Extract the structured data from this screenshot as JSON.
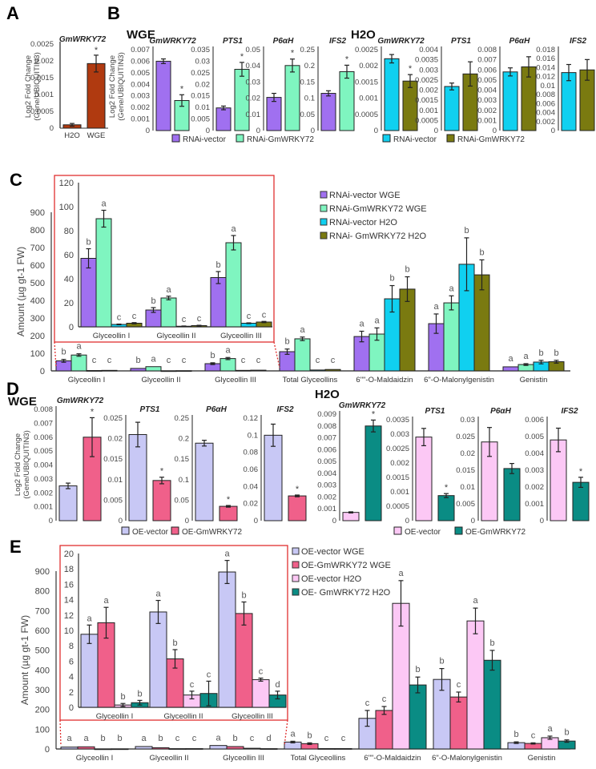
{
  "colors": {
    "rnai_vector_wge": "#a070f0",
    "rnai_gm_wge": "#7ff5c0",
    "rnai_vector_h2o": "#10d0f0",
    "rnai_gm_h2o": "#7a7a10",
    "oe_vector_wge": "#c8c8f5",
    "oe_gm_wge": "#f0608a",
    "oe_vector_h2o": "#fcc8f5",
    "oe_gm_h2o": "#0a8c84",
    "panelA": "#b03a10",
    "inset_border": "#e03030"
  },
  "chart_data": [
    {
      "id": "A",
      "panel": "A",
      "type": "bar",
      "title": "GmWRKY72",
      "ylabel": "Log2 Fold Change (Gene/UBIQUITIN3)",
      "categories": [
        "H2O",
        "WGE"
      ],
      "values": [
        0.0001,
        0.00192
      ],
      "errors": [
        4e-05,
        0.00025
      ],
      "significance": [
        "",
        "*"
      ],
      "yticks": [
        "0",
        "0.0005",
        "0.001",
        "0.0015",
        "0.002",
        "0.0025"
      ],
      "ylim": [
        0,
        0.0025
      ]
    },
    {
      "id": "B",
      "panel": "B",
      "type": "bar",
      "ylabel": "Log2 Fold Change (Gene/UBIQUITIN3)",
      "groups": [
        {
          "condition": "WGE",
          "legend": [
            "RNAi-vector",
            "RNAi-GmWRKY72"
          ],
          "genes": [
            {
              "name": "GmWRKY72",
              "values": [
                0.006,
                0.0026
              ],
              "errors": [
                0.0002,
                0.0005
              ],
              "sig": [
                "",
                "*"
              ],
              "yticks": [
                "0",
                "0.001",
                "0.002",
                "0.003",
                "0.004",
                "0.005",
                "0.006",
                "0.007"
              ],
              "ylim": [
                0,
                0.007
              ]
            },
            {
              "name": "PTS1",
              "values": [
                0.0098,
                0.0265
              ],
              "errors": [
                0.0008,
                0.003
              ],
              "sig": [
                "",
                "*"
              ],
              "yticks": [
                "0",
                "0.005",
                "0.01",
                "0.015",
                "0.02",
                "0.025",
                "0.03",
                "0.035"
              ],
              "ylim": [
                0,
                0.035
              ]
            },
            {
              "name": "P6αH",
              "values": [
                0.0205,
                0.0402
              ],
              "errors": [
                0.0025,
                0.004
              ],
              "sig": [
                "",
                "*"
              ],
              "yticks": [
                "0",
                "0.01",
                "0.02",
                "0.03",
                "0.04",
                "0.05"
              ],
              "ylim": [
                0,
                0.05
              ]
            },
            {
              "name": "IFS2",
              "values": [
                0.115,
                0.182
              ],
              "errors": [
                0.008,
                0.02
              ],
              "sig": [
                "",
                "*"
              ],
              "yticks": [
                "0",
                "0.05",
                "0.1",
                "0.15",
                "0.2",
                "0.25"
              ],
              "ylim": [
                0,
                0.25
              ]
            }
          ]
        },
        {
          "condition": "H2O",
          "legend": [
            "RNAi-vector",
            "RNAi-GmWRKY72"
          ],
          "genes": [
            {
              "name": "GmWRKY72",
              "values": [
                0.00222,
                0.00153
              ],
              "errors": [
                0.00013,
                0.0002
              ],
              "sig": [
                "",
                "*"
              ],
              "yticks": [
                "0",
                "0.0005",
                "0.001",
                "0.0015",
                "0.002",
                "0.0025"
              ],
              "ylim": [
                0,
                0.0025
              ]
            },
            {
              "name": "PTS1",
              "values": [
                0.00218,
                0.0028
              ],
              "errors": [
                0.00017,
                0.0006
              ],
              "sig": [
                "",
                ""
              ],
              "yticks": [
                "0",
                "0.0005",
                "0.001",
                "0.0015",
                "0.002",
                "0.0025",
                "0.003",
                "0.0035",
                "0.004"
              ],
              "ylim": [
                0,
                0.004
              ]
            },
            {
              "name": "P6αH",
              "values": [
                0.0058,
                0.0063
              ],
              "errors": [
                0.0004,
                0.001
              ],
              "sig": [
                "",
                ""
              ],
              "yticks": [
                "0",
                "0.001",
                "0.002",
                "0.003",
                "0.004",
                "0.005",
                "0.006",
                "0.007",
                "0.008"
              ],
              "ylim": [
                0,
                0.008
              ]
            },
            {
              "name": "IFS2",
              "values": [
                0.0129,
                0.0135
              ],
              "errors": [
                0.0018,
                0.0023
              ],
              "sig": [
                "",
                ""
              ],
              "yticks": [
                "0",
                "0.002",
                "0.004",
                "0.006",
                "0.008",
                "0.01",
                "0.012",
                "0.014",
                "0.016",
                "0.018"
              ],
              "ylim": [
                0,
                0.018
              ]
            }
          ]
        }
      ]
    },
    {
      "id": "C",
      "panel": "C",
      "type": "bar",
      "ylabel": "Amount (µg gt-1 FW)",
      "ylim": [
        0,
        900
      ],
      "yticks": [
        "0",
        "100",
        "200",
        "300",
        "400",
        "500",
        "600",
        "700",
        "800",
        "900"
      ],
      "categories": [
        "Glyceollin I",
        "Glyceollin II",
        "Glyceollin III",
        "Total Glyceollins",
        "6\"\"-O-Maldaidzin",
        "6\"-O-Malonylgenistin",
        "Genistin"
      ],
      "series": [
        {
          "name": "RNAi-vector WGE",
          "values": [
            57,
            14,
            41,
            109,
            195,
            268,
            23
          ],
          "errors": [
            8,
            2,
            5,
            15,
            30,
            55,
            5
          ],
          "letters": [
            "b",
            "b",
            "b",
            "b",
            "a",
            "a",
            "a"
          ]
        },
        {
          "name": "RNAi-GmWRKY72 WGE",
          "values": [
            90,
            24,
            70,
            182,
            209,
            386,
            36
          ],
          "errors": [
            7,
            1.5,
            6,
            10,
            35,
            40,
            5
          ],
          "letters": [
            "a",
            "a",
            "a",
            "a",
            "a",
            "a",
            "a"
          ]
        },
        {
          "name": "RNAi-vector H2O",
          "values": [
            2,
            0.5,
            3,
            5,
            409,
            605,
            50
          ],
          "errors": [
            0.3,
            0.2,
            0.3,
            1,
            75,
            150,
            10
          ],
          "letters": [
            "c",
            "c",
            "c",
            "c",
            "b",
            "b",
            "b"
          ]
        },
        {
          "name": "RNAi- GmWRKY72 H2O",
          "values": [
            3,
            1,
            4,
            8,
            464,
            545,
            52
          ],
          "errors": [
            0.5,
            0.3,
            0.5,
            2,
            70,
            85,
            8
          ],
          "letters": [
            "c",
            "c",
            "c",
            "c",
            "b",
            "b",
            "b"
          ]
        }
      ],
      "inset": {
        "ylim": [
          0,
          120
        ],
        "yticks": [
          "0",
          "20",
          "40",
          "60",
          "80",
          "100",
          "120"
        ],
        "categories": [
          "Glyceollin I",
          "Glyceollin II",
          "Glyceollin III"
        ]
      }
    },
    {
      "id": "D",
      "panel": "D",
      "type": "bar",
      "ylabel": "Log2 Fold Change (Gene/UBIQUITIN3)",
      "groups": [
        {
          "condition": "WGE",
          "legend": [
            "OE-vector",
            "OE-GmWRKY72"
          ],
          "genes": [
            {
              "name": "GmWRKY72",
              "values": [
                0.0025,
                0.006
              ],
              "errors": [
                0.0002,
                0.0014
              ],
              "sig": [
                "",
                "*"
              ],
              "yticks": [
                "0",
                "0.001",
                "0.002",
                "0.003",
                "0.004",
                "0.005",
                "0.006",
                "0.007",
                "0.008"
              ],
              "ylim": [
                0,
                0.008
              ]
            },
            {
              "name": "PTS1",
              "values": [
                0.021,
                0.0098
              ],
              "errors": [
                0.003,
                0.0008
              ],
              "sig": [
                "",
                "*"
              ],
              "yticks": [
                "0",
                "0.005",
                "0.01",
                "0.015",
                "0.02",
                "0.025"
              ],
              "ylim": [
                0,
                0.025
              ]
            },
            {
              "name": "P6αH",
              "values": [
                0.189,
                0.035
              ],
              "errors": [
                0.007,
                0.002
              ],
              "sig": [
                "",
                "*"
              ],
              "yticks": [
                "0",
                "0.05",
                "0.1",
                "0.15",
                "0.2",
                "0.25"
              ],
              "ylim": [
                0,
                0.25
              ]
            },
            {
              "name": "IFS2",
              "values": [
                0.1,
                0.029
              ],
              "errors": [
                0.013,
                0.001
              ],
              "sig": [
                "",
                "*"
              ],
              "yticks": [
                "0",
                "0.02",
                "0.04",
                "0.06",
                "0.08",
                "0.1",
                "0.12"
              ],
              "ylim": [
                0,
                0.12
              ]
            }
          ]
        },
        {
          "condition": "H2O",
          "legend": [
            "OE-vector",
            "OE-GmWRKY72"
          ],
          "genes": [
            {
              "name": "GmWRKY72",
              "values": [
                0.0007,
                0.008
              ],
              "errors": [
                5e-05,
                0.0005
              ],
              "sig": [
                "",
                "*"
              ],
              "yticks": [
                "0",
                "0.001",
                "0.002",
                "0.003",
                "0.004",
                "0.005",
                "0.006",
                "0.007",
                "0.008",
                "0.009"
              ],
              "ylim": [
                0,
                0.009
              ]
            },
            {
              "name": "PTS1",
              "values": [
                0.0029,
                0.00087
              ],
              "errors": [
                0.0003,
                7e-05
              ],
              "sig": [
                "",
                "*"
              ],
              "yticks": [
                "0",
                "0.0005",
                "0.001",
                "0.0015",
                "0.002",
                "0.0025",
                "0.003",
                "0.0035"
              ],
              "ylim": [
                0,
                0.0035
              ]
            },
            {
              "name": "P6αH",
              "values": [
                0.0234,
                0.0155
              ],
              "errors": [
                0.0043,
                0.0015
              ],
              "sig": [
                "",
                ""
              ],
              "yticks": [
                "0",
                "0.005",
                "0.01",
                "0.015",
                "0.02",
                "0.025",
                "0.03"
              ],
              "ylim": [
                0,
                0.03
              ]
            },
            {
              "name": "IFS2",
              "values": [
                0.0048,
                0.00228
              ],
              "errors": [
                0.0007,
                0.0003
              ],
              "sig": [
                "",
                "*"
              ],
              "yticks": [
                "0",
                "0.001",
                "0.002",
                "0.003",
                "0.004",
                "0.005",
                "0.006"
              ],
              "ylim": [
                0,
                0.006
              ]
            }
          ]
        }
      ]
    },
    {
      "id": "E",
      "panel": "E",
      "type": "bar",
      "ylabel": "Amount (µg gt-1 FW)",
      "ylim": [
        0,
        900
      ],
      "yticks": [
        "0",
        "100",
        "200",
        "300",
        "400",
        "500",
        "600",
        "700",
        "800",
        "900"
      ],
      "categories": [
        "Glyceollin I",
        "Glyceollin II",
        "Glyceollin III",
        "Total Glyceollins",
        "6\"\"-O-Maldaidzin",
        "6\"-O-Malonylgenistin",
        "Genistin"
      ],
      "series": [
        {
          "name": "OE-vector WGE",
          "values": [
            9.5,
            12.4,
            17.6,
            35,
            155,
            352,
            32
          ],
          "errors": [
            1.2,
            1.5,
            1.5,
            4,
            40,
            55,
            4
          ],
          "letters": [
            "a",
            "a",
            "a",
            "a",
            "c",
            "b",
            "b"
          ]
        },
        {
          "name": "OE-GmWRKY72 WGE",
          "values": [
            11,
            6.3,
            12.2,
            27,
            195,
            263,
            28
          ],
          "errors": [
            2,
            1.2,
            1.5,
            4,
            20,
            25,
            3
          ],
          "letters": [
            "a",
            "b",
            "b",
            "b",
            "c",
            "c",
            "c"
          ]
        },
        {
          "name": "OE-vector H2O",
          "values": [
            0.3,
            1.6,
            3.6,
            2,
            737,
            648,
            57
          ],
          "errors": [
            0.2,
            0.5,
            0.2,
            0.5,
            115,
            65,
            8
          ],
          "letters": [
            "b",
            "c",
            "c",
            "c",
            "a",
            "a",
            "a"
          ]
        },
        {
          "name": "OE- GmWRKY72 H2O",
          "values": [
            0.6,
            1.8,
            1.6,
            2,
            324,
            449,
            40
          ],
          "errors": [
            0.3,
            1.6,
            0.5,
            0.5,
            40,
            50,
            6
          ],
          "letters": [
            "b",
            "c",
            "d",
            "c",
            "b",
            "b",
            "b"
          ]
        }
      ],
      "inset": {
        "ylim": [
          0,
          20
        ],
        "yticks": [
          "0",
          "2",
          "4",
          "6",
          "8",
          "10",
          "12",
          "14",
          "16",
          "18",
          "20"
        ],
        "categories": [
          "Glyceollin I",
          "Glyceollin II",
          "Glyceollin III"
        ]
      }
    }
  ],
  "labels": {
    "panelA": "A",
    "panelB": "B",
    "panelC": "C",
    "panelD": "D",
    "panelE": "E",
    "wge": "WGE",
    "h2o": "H2O"
  }
}
